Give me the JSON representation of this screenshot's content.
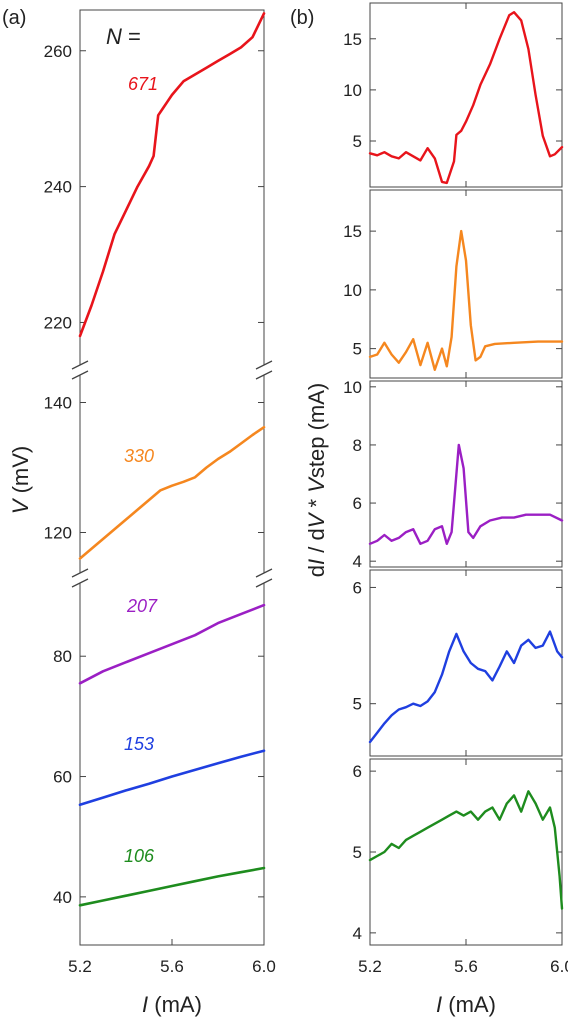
{
  "chart_data": [
    {
      "panel_label": "(a)",
      "type": "line",
      "ylabel_prefix": "V",
      "ylabel_unit": " (mV)",
      "xlabel_prefix": "I",
      "xlabel_unit": " (mA)",
      "legend_header_prefix": "N",
      "legend_header_suffix": " =",
      "xlim": [
        5.2,
        6.0
      ],
      "xticks": [
        "5.2",
        "5.6",
        "6.0"
      ],
      "xtick_values": [
        5.2,
        5.6,
        6.0
      ],
      "y_segments": [
        {
          "ylim": [
            213,
            266
          ],
          "ticks": [
            220,
            240,
            260
          ],
          "tick_labels": [
            "220",
            "240",
            "260"
          ]
        },
        {
          "ylim": [
            113,
            145
          ],
          "ticks": [
            120,
            140
          ],
          "tick_labels": [
            "120",
            "140"
          ]
        },
        {
          "ylim": [
            32,
            93
          ],
          "ticks": [
            40,
            60,
            80
          ],
          "tick_labels": [
            "40",
            "60",
            "80"
          ]
        }
      ],
      "series": [
        {
          "name": "671",
          "color": "#e8141b",
          "segment": 0,
          "x": [
            5.2,
            5.25,
            5.3,
            5.35,
            5.4,
            5.45,
            5.5,
            5.52,
            5.54,
            5.56,
            5.58,
            5.6,
            5.65,
            5.7,
            5.75,
            5.8,
            5.85,
            5.9,
            5.95,
            6.0
          ],
          "y": [
            218,
            222.5,
            227.5,
            233,
            236.5,
            240,
            243,
            244.5,
            250.5,
            251.5,
            252.5,
            253.5,
            255.5,
            256.5,
            257.5,
            258.5,
            259.5,
            260.5,
            262,
            265.5
          ]
        },
        {
          "name": "330",
          "color": "#f5871f",
          "segment": 1,
          "x": [
            5.2,
            5.25,
            5.3,
            5.35,
            5.4,
            5.45,
            5.5,
            5.55,
            5.6,
            5.65,
            5.7,
            5.75,
            5.8,
            5.85,
            5.9,
            5.95,
            6.0
          ],
          "y": [
            116,
            117.5,
            119,
            120.5,
            122,
            123.5,
            125,
            126.5,
            127.2,
            127.8,
            128.5,
            130,
            131.3,
            132.4,
            133.7,
            135,
            136.2
          ]
        },
        {
          "name": "207",
          "color": "#9b1fc4",
          "segment": 2,
          "x": [
            5.2,
            5.3,
            5.4,
            5.5,
            5.6,
            5.7,
            5.8,
            5.9,
            6.0
          ],
          "y": [
            75.5,
            77.5,
            79,
            80.5,
            82,
            83.5,
            85.5,
            87,
            88.5
          ]
        },
        {
          "name": "153",
          "color": "#1f3fe0",
          "segment": 2,
          "x": [
            5.2,
            5.3,
            5.4,
            5.5,
            5.6,
            5.7,
            5.8,
            5.9,
            6.0
          ],
          "y": [
            55.3,
            56.5,
            57.7,
            58.8,
            60,
            61.1,
            62.2,
            63.3,
            64.3
          ]
        },
        {
          "name": "106",
          "color": "#1e8c1e",
          "segment": 2,
          "x": [
            5.2,
            5.3,
            5.4,
            5.5,
            5.6,
            5.7,
            5.8,
            5.9,
            6.0
          ],
          "y": [
            38.6,
            39.4,
            40.2,
            41,
            41.8,
            42.6,
            43.4,
            44.1,
            44.8
          ]
        }
      ]
    },
    {
      "panel_label": "(b)",
      "type": "line",
      "ylabel_prefix_1": "d",
      "ylabel_i": "I",
      "ylabel_mid": " / d",
      "ylabel_v": "V",
      "ylabel_star": " * ",
      "ylabel_vstep_v": "V",
      "ylabel_vstep_sub": "step",
      "ylabel_unit": " (mA)",
      "xlabel_prefix": "I",
      "xlabel_unit": " (mA)",
      "xlim": [
        5.2,
        6.0
      ],
      "xticks": [
        "5.2",
        "5.6",
        "6.0"
      ],
      "xtick_values": [
        5.2,
        5.6,
        6.0
      ],
      "subplots": [
        {
          "name": "671",
          "color": "#e8141b",
          "ylim": [
            0.5,
            18.5
          ],
          "ticks": [
            5,
            10,
            15
          ],
          "tick_labels": [
            "5",
            "10",
            "15"
          ],
          "x": [
            5.2,
            5.23,
            5.26,
            5.29,
            5.32,
            5.35,
            5.38,
            5.41,
            5.44,
            5.47,
            5.5,
            5.52,
            5.55,
            5.56,
            5.58,
            5.6,
            5.63,
            5.66,
            5.7,
            5.74,
            5.78,
            5.8,
            5.83,
            5.86,
            5.89,
            5.92,
            5.95,
            5.97,
            6.0
          ],
          "y": [
            3.8,
            3.6,
            3.9,
            3.5,
            3.3,
            3.9,
            3.5,
            3.1,
            4.3,
            3.3,
            1.0,
            0.9,
            3.0,
            5.6,
            6.0,
            6.9,
            8.5,
            10.5,
            12.5,
            15.0,
            17.3,
            17.6,
            16.8,
            14.0,
            9.5,
            5.5,
            3.5,
            3.7,
            4.4
          ]
        },
        {
          "name": "330",
          "color": "#f5871f",
          "ylim": [
            2.5,
            18.5
          ],
          "ticks": [
            5,
            10,
            15
          ],
          "tick_labels": [
            "5",
            "10",
            "15"
          ],
          "x": [
            5.2,
            5.23,
            5.26,
            5.29,
            5.32,
            5.35,
            5.38,
            5.41,
            5.44,
            5.47,
            5.5,
            5.52,
            5.54,
            5.56,
            5.58,
            5.6,
            5.62,
            5.64,
            5.66,
            5.68,
            5.72,
            5.8,
            5.9,
            6.0
          ],
          "y": [
            4.3,
            4.5,
            5.5,
            4.5,
            3.8,
            4.7,
            5.8,
            3.6,
            5.5,
            3.2,
            5.0,
            3.5,
            6.0,
            12.0,
            15.0,
            12.5,
            7.0,
            4.0,
            4.3,
            5.2,
            5.4,
            5.5,
            5.6,
            5.6
          ]
        },
        {
          "name": "207",
          "color": "#9b1fc4",
          "ylim": [
            3.8,
            10.2
          ],
          "ticks": [
            4,
            6,
            8,
            10
          ],
          "tick_labels": [
            "4",
            "6",
            "8",
            "10"
          ],
          "x": [
            5.2,
            5.23,
            5.26,
            5.29,
            5.32,
            5.35,
            5.38,
            5.41,
            5.44,
            5.47,
            5.5,
            5.52,
            5.54,
            5.55,
            5.57,
            5.59,
            5.61,
            5.63,
            5.66,
            5.7,
            5.75,
            5.8,
            5.85,
            5.9,
            5.95,
            6.0
          ],
          "y": [
            4.6,
            4.7,
            4.9,
            4.7,
            4.8,
            5.0,
            5.1,
            4.6,
            4.7,
            5.1,
            5.2,
            4.6,
            5.0,
            6.0,
            8.0,
            7.2,
            5.0,
            4.8,
            5.2,
            5.4,
            5.5,
            5.5,
            5.6,
            5.6,
            5.6,
            5.4
          ]
        },
        {
          "name": "153",
          "color": "#1f3fe0",
          "ylim": [
            4.55,
            6.15
          ],
          "ticks": [
            5,
            6
          ],
          "tick_labels": [
            "5",
            "6"
          ],
          "x": [
            5.2,
            5.23,
            5.26,
            5.29,
            5.32,
            5.35,
            5.38,
            5.41,
            5.44,
            5.47,
            5.5,
            5.53,
            5.56,
            5.59,
            5.62,
            5.65,
            5.68,
            5.71,
            5.74,
            5.77,
            5.8,
            5.83,
            5.86,
            5.89,
            5.92,
            5.95,
            5.98,
            6.0
          ],
          "y": [
            4.67,
            4.75,
            4.83,
            4.9,
            4.95,
            4.97,
            5.0,
            4.98,
            5.02,
            5.1,
            5.25,
            5.45,
            5.6,
            5.45,
            5.35,
            5.3,
            5.28,
            5.2,
            5.32,
            5.45,
            5.35,
            5.5,
            5.55,
            5.48,
            5.5,
            5.62,
            5.45,
            5.4
          ]
        },
        {
          "name": "106",
          "color": "#1e8c1e",
          "ylim": [
            3.85,
            6.15
          ],
          "ticks": [
            4,
            5,
            6
          ],
          "tick_labels": [
            "4",
            "5",
            "6"
          ],
          "x": [
            5.2,
            5.23,
            5.26,
            5.29,
            5.32,
            5.35,
            5.38,
            5.41,
            5.44,
            5.47,
            5.5,
            5.53,
            5.56,
            5.59,
            5.62,
            5.65,
            5.68,
            5.71,
            5.74,
            5.77,
            5.8,
            5.83,
            5.86,
            5.89,
            5.92,
            5.95,
            5.97,
            5.98,
            5.99,
            6.0
          ],
          "y": [
            4.9,
            4.95,
            5.0,
            5.1,
            5.05,
            5.15,
            5.2,
            5.25,
            5.3,
            5.35,
            5.4,
            5.45,
            5.5,
            5.45,
            5.5,
            5.4,
            5.5,
            5.55,
            5.4,
            5.6,
            5.7,
            5.5,
            5.75,
            5.6,
            5.4,
            5.55,
            5.3,
            5.0,
            4.7,
            4.3
          ]
        }
      ]
    }
  ]
}
